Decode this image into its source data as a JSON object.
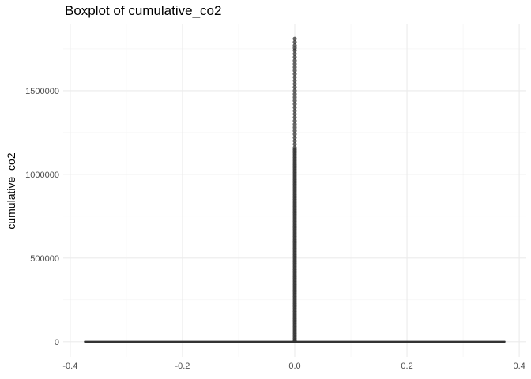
{
  "chart_data": {
    "type": "boxplot",
    "title": "Boxplot of cumulative_co2",
    "xlabel": "",
    "ylabel": "cumulative_co2",
    "xlim": [
      -0.4,
      0.4
    ],
    "ylim": [
      0,
      1800000
    ],
    "x_ticks": [
      {
        "value": -0.4,
        "label": "-0.4"
      },
      {
        "value": -0.2,
        "label": "-0.2"
      },
      {
        "value": 0.0,
        "label": "0.0"
      },
      {
        "value": 0.2,
        "label": "0.2"
      },
      {
        "value": 0.4,
        "label": "0.4"
      }
    ],
    "y_ticks": [
      {
        "value": 0,
        "label": "0"
      },
      {
        "value": 500000,
        "label": "500000"
      },
      {
        "value": 1000000,
        "label": "1000000"
      },
      {
        "value": 1500000,
        "label": "1500000"
      }
    ],
    "grid": true,
    "box": {
      "x_center": 0,
      "x_extent": [
        -0.375,
        0.375
      ],
      "q1": 0,
      "median": 0,
      "q3": 0,
      "whisker_low": 0,
      "whisker_high": 0
    },
    "outliers_x": 0,
    "outliers": [
      1810000,
      1790000,
      1770000,
      1755000,
      1740000,
      1720000,
      1700000,
      1680000,
      1660000,
      1640000,
      1620000,
      1600000,
      1580000,
      1560000,
      1540000,
      1520000,
      1500000,
      1480000,
      1460000,
      1440000,
      1420000,
      1400000,
      1380000,
      1360000,
      1340000,
      1320000,
      1300000,
      1280000,
      1260000,
      1240000,
      1220000,
      1200000,
      1180000,
      1160000,
      1150000,
      1140000,
      1130000,
      1120000,
      1110000,
      1100000,
      1090000,
      1080000,
      1070000,
      1060000,
      1050000,
      1040000,
      1030000,
      1020000,
      1010000,
      1000000,
      990000,
      980000,
      970000,
      960000,
      950000,
      940000,
      930000,
      920000,
      910000,
      900000,
      890000,
      880000,
      870000,
      860000,
      850000,
      840000,
      830000,
      820000,
      810000,
      800000,
      790000,
      780000,
      770000,
      760000,
      750000,
      740000,
      730000,
      720000,
      710000,
      700000,
      690000,
      680000,
      670000,
      660000,
      650000,
      640000,
      630000,
      620000,
      610000,
      600000,
      590000,
      580000,
      570000,
      560000,
      550000,
      540000,
      530000,
      520000,
      510000,
      500000,
      490000,
      480000,
      470000,
      460000,
      450000,
      440000,
      430000,
      420000,
      410000,
      400000,
      390000,
      380000,
      370000,
      360000,
      350000,
      340000,
      330000,
      320000,
      310000,
      300000,
      290000,
      280000,
      270000,
      260000,
      250000,
      240000,
      230000,
      220000,
      210000,
      200000,
      190000,
      180000,
      170000,
      160000,
      150000,
      140000,
      130000,
      120000,
      110000,
      100000,
      90000,
      80000,
      70000,
      60000,
      50000,
      40000,
      30000,
      20000,
      10000,
      5000
    ],
    "colors": {
      "box_line": "#333333",
      "outlier": "#333333",
      "grid_major": "#ebebeb",
      "grid_minor": "#f3f3f3"
    }
  }
}
